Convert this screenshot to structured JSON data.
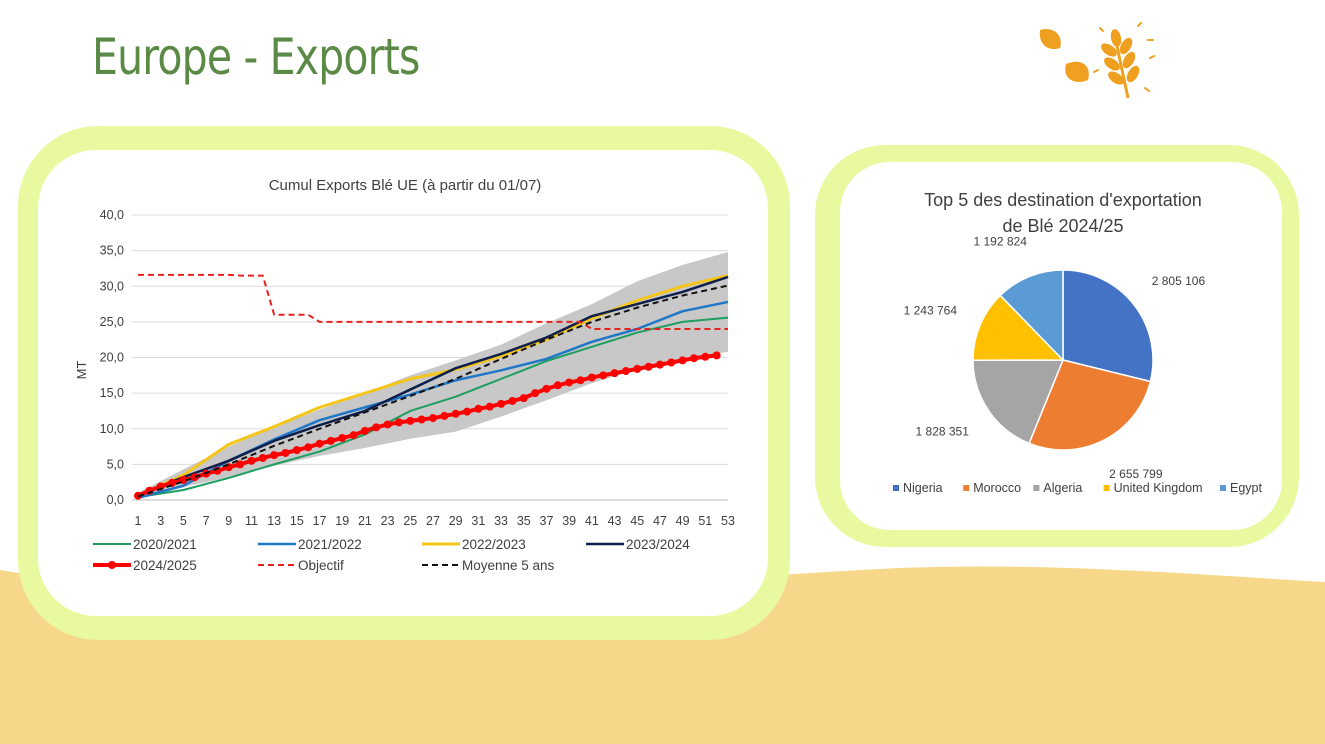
{
  "page": {
    "title": "Europe - Exports"
  },
  "colors": {
    "title": "#5a8a45",
    "card_border": "#e8f9a0",
    "sand": "#f7d789",
    "logo": "#f0a020"
  },
  "chart_data": [
    {
      "type": "line",
      "title": "Cumul Exports Blé UE (à partir du 01/07)",
      "ylabel": "MT",
      "xlabel": "",
      "ylim": [
        0,
        40
      ],
      "yticks": [
        "0,0",
        "5,0",
        "10,0",
        "15,0",
        "20,0",
        "25,0",
        "30,0",
        "35,0",
        "40,0"
      ],
      "xticks": [
        "1",
        "3",
        "5",
        "7",
        "9",
        "11",
        "13",
        "15",
        "17",
        "19",
        "21",
        "23",
        "25",
        "27",
        "29",
        "31",
        "33",
        "35",
        "37",
        "39",
        "41",
        "43",
        "45",
        "47",
        "49",
        "51",
        "53"
      ],
      "grid": true,
      "legend_position": "bottom",
      "band": {
        "x": [
          1,
          5,
          9,
          13,
          17,
          21,
          25,
          29,
          33,
          37,
          41,
          45,
          49,
          53
        ],
        "low": [
          0.5,
          1.8,
          3.2,
          4.8,
          6.2,
          7.3,
          8.6,
          9.6,
          11.7,
          14.0,
          16.4,
          18.3,
          19.7,
          20.8
        ],
        "high": [
          1.0,
          4.3,
          7.5,
          10.2,
          12.7,
          15.0,
          17.5,
          19.6,
          21.8,
          24.8,
          27.5,
          30.7,
          33.0,
          34.8
        ],
        "color": "#c8c8c8"
      },
      "series": [
        {
          "name": "2020/2021",
          "color": "#1e9e60",
          "width": 2,
          "x": [
            1,
            5,
            9,
            13,
            17,
            21,
            25,
            29,
            33,
            37,
            41,
            45,
            49,
            53
          ],
          "y": [
            0.4,
            1.4,
            3.1,
            5.0,
            6.8,
            9.2,
            12.5,
            14.5,
            17.0,
            19.5,
            21.5,
            23.5,
            25.0,
            25.6
          ]
        },
        {
          "name": "2021/2022",
          "color": "#1f77c8",
          "width": 2.5,
          "x": [
            1,
            5,
            9,
            13,
            17,
            21,
            25,
            29,
            33,
            37,
            41,
            45,
            49,
            53
          ],
          "y": [
            0.3,
            2.0,
            5.5,
            8.5,
            11.2,
            13.0,
            14.8,
            16.8,
            18.2,
            19.8,
            22.2,
            24.0,
            26.5,
            27.8
          ]
        },
        {
          "name": "2022/2023",
          "color": "#f5c518",
          "width": 3,
          "x": [
            1,
            5,
            9,
            13,
            17,
            21,
            25,
            29,
            33,
            37,
            41,
            45,
            49,
            53
          ],
          "y": [
            0.6,
            3.5,
            7.8,
            10.3,
            13.0,
            15.0,
            17.0,
            18.3,
            20.2,
            22.5,
            25.5,
            28.0,
            30.0,
            31.5
          ]
        },
        {
          "name": "2023/2024",
          "color": "#0d1f4a",
          "width": 2.5,
          "x": [
            1,
            5,
            9,
            13,
            17,
            21,
            25,
            29,
            33,
            37,
            41,
            45,
            49,
            53
          ],
          "y": [
            0.7,
            3.2,
            5.5,
            8.3,
            10.5,
            12.5,
            15.5,
            18.5,
            20.5,
            22.8,
            25.8,
            27.5,
            29.2,
            31.3
          ]
        },
        {
          "name": "2024/2025",
          "color": "#ff0000",
          "width": 4,
          "markers": true,
          "x": [
            1,
            2,
            3,
            4,
            5,
            6,
            7,
            8,
            9,
            10,
            11,
            12,
            13,
            14,
            15,
            16,
            17,
            18,
            19,
            20,
            21,
            22,
            23,
            24,
            25,
            26,
            27,
            28,
            29,
            30,
            31,
            32,
            33,
            34,
            35,
            36,
            37,
            38,
            39,
            40,
            41,
            42,
            43,
            44,
            45,
            46,
            47,
            48,
            49,
            50,
            51,
            52
          ],
          "y": [
            0.6,
            1.3,
            1.9,
            2.4,
            2.8,
            3.2,
            3.7,
            4.1,
            4.6,
            5.0,
            5.5,
            5.9,
            6.3,
            6.6,
            7.0,
            7.4,
            7.9,
            8.3,
            8.7,
            9.1,
            9.7,
            10.2,
            10.6,
            10.9,
            11.1,
            11.3,
            11.5,
            11.8,
            12.1,
            12.4,
            12.8,
            13.1,
            13.5,
            13.9,
            14.3,
            15.0,
            15.6,
            16.1,
            16.5,
            16.8,
            17.2,
            17.5,
            17.8,
            18.1,
            18.4,
            18.7,
            19.0,
            19.3,
            19.6,
            19.9,
            20.1,
            20.3
          ]
        },
        {
          "name": "Objectif",
          "color": "#e8201e",
          "width": 2,
          "dash": "6,4",
          "x": [
            1,
            9,
            10,
            12,
            13,
            16,
            17,
            40,
            41,
            53
          ],
          "y": [
            31.6,
            31.6,
            31.5,
            31.5,
            26.0,
            26.0,
            25.0,
            25.0,
            24.0,
            24.0
          ]
        },
        {
          "name": "Moyenne 5 ans",
          "color": "#111111",
          "width": 2,
          "dash": "6,4",
          "x": [
            1,
            5,
            9,
            13,
            17,
            21,
            25,
            29,
            33,
            37,
            41,
            45,
            49,
            53
          ],
          "y": [
            0.5,
            2.6,
            5.0,
            7.6,
            10.0,
            12.3,
            14.6,
            17.0,
            19.8,
            22.5,
            25.0,
            27.0,
            28.7,
            30.1
          ]
        }
      ]
    },
    {
      "type": "pie",
      "title": "Top 5 des destination d'exportation de Blé 2024/25",
      "title_lines": [
        "Top 5 des destination d'exportation",
        "de Blé 2024/25"
      ],
      "categories": [
        "Nigeria",
        "Morocco",
        "Algeria",
        "United Kingdom",
        "Egypt"
      ],
      "values": [
        2805106,
        2655799,
        1828351,
        1243764,
        1192824
      ],
      "value_labels": [
        "2 805 106",
        "2 655 799",
        "1 828 351",
        "1 243 764",
        "1 192 824"
      ],
      "colors": [
        "#4472c4",
        "#ed7d31",
        "#a5a5a5",
        "#ffc000",
        "#5b9bd5"
      ],
      "legend_position": "bottom"
    }
  ]
}
